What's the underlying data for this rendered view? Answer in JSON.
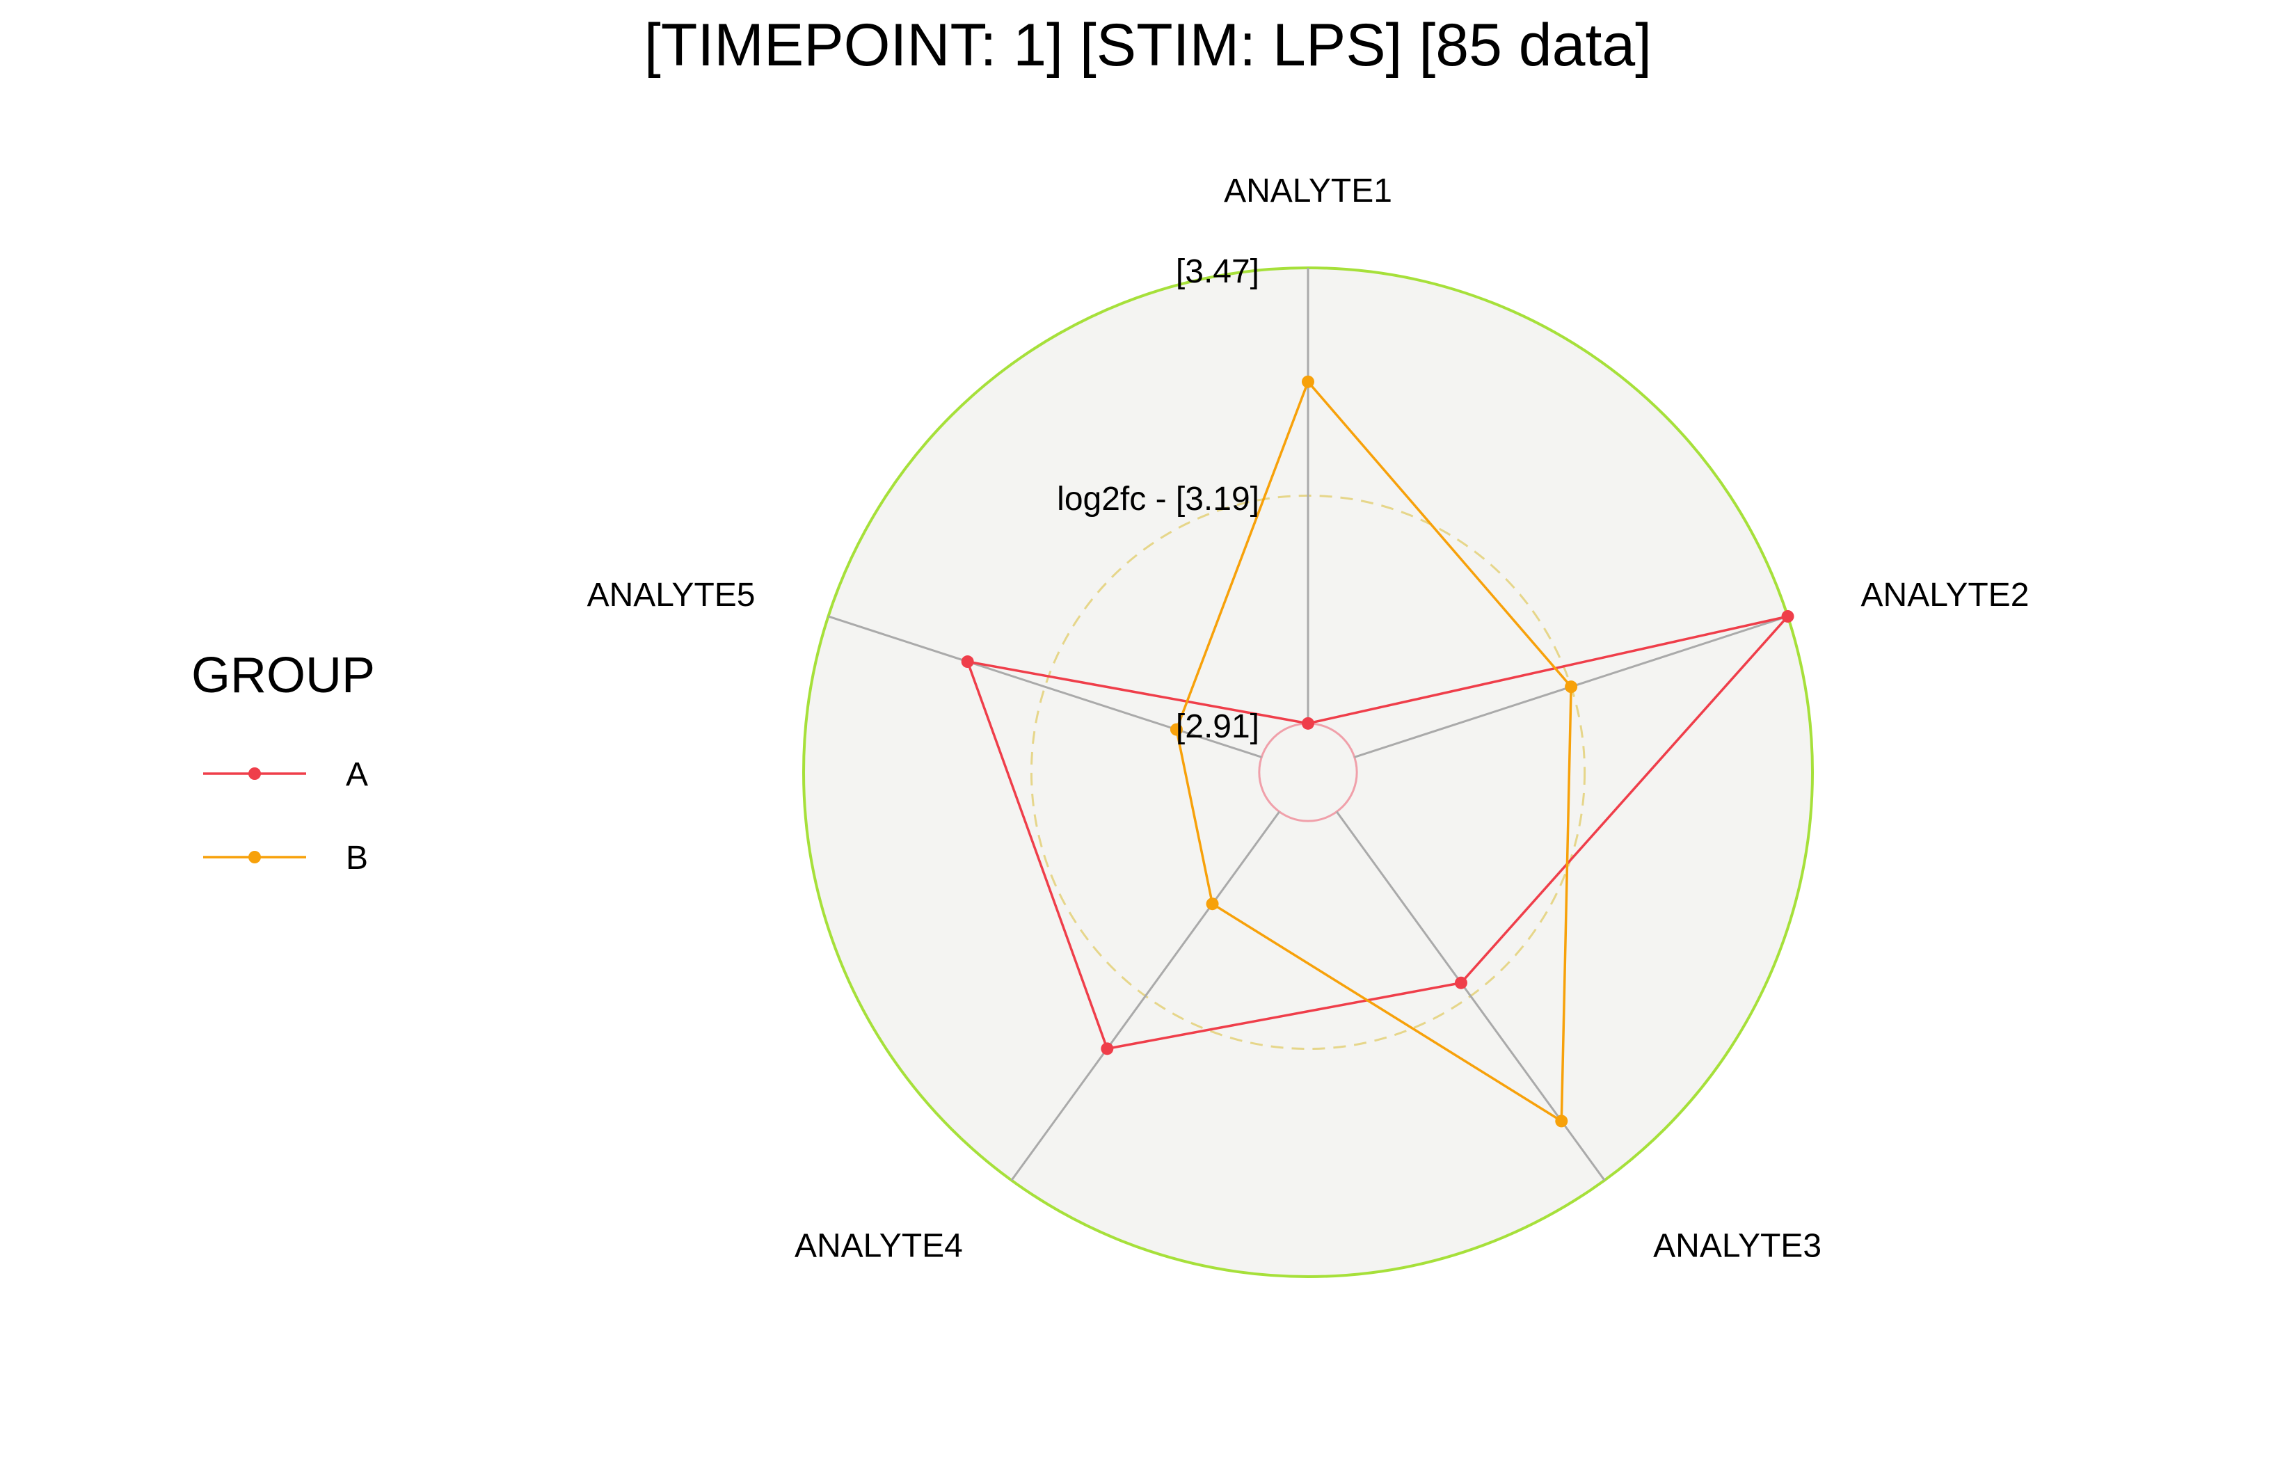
{
  "chart_data": {
    "type": "radar",
    "title": "[TIMEPOINT: 1]  [STIM: LPS]  [85 data]",
    "axes": [
      "ANALYTE1",
      "ANALYTE2",
      "ANALYTE3",
      "ANALYTE4",
      "ANALYTE5"
    ],
    "rlim": [
      2.85,
      3.47
    ],
    "grid_labels": {
      "outer": "[3.47]",
      "middle": "log2fc - [3.19]",
      "inner": "[2.91]"
    },
    "grid_values": {
      "outer": 3.47,
      "middle": 3.19,
      "inner": 2.91
    },
    "legend": {
      "title": "GROUP",
      "position": "left"
    },
    "series": [
      {
        "name": "A",
        "color": "#ef3e4a",
        "values": [
          2.91,
          3.47,
          3.17,
          3.27,
          3.29
        ]
      },
      {
        "name": "B",
        "color": "#f7a10a",
        "values": [
          3.33,
          3.19,
          3.38,
          3.05,
          3.02
        ]
      }
    ],
    "colors": {
      "panel_fill": "#f4f4f2",
      "outer_ring": "#a6e03a",
      "middle_ring": "#e6d68a",
      "inner_ring": "#f0a0aa",
      "spokes": "#aaaaaa"
    }
  }
}
